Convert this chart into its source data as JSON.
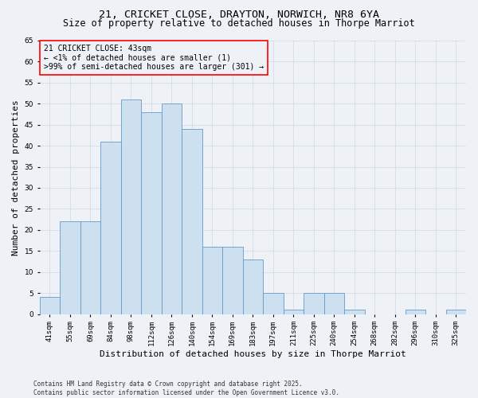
{
  "title_line1": "21, CRICKET CLOSE, DRAYTON, NORWICH, NR8 6YA",
  "title_line2": "Size of property relative to detached houses in Thorpe Marriot",
  "xlabel": "Distribution of detached houses by size in Thorpe Marriot",
  "ylabel": "Number of detached properties",
  "footnote": "Contains HM Land Registry data © Crown copyright and database right 2025.\nContains public sector information licensed under the Open Government Licence v3.0.",
  "bar_labels": [
    "41sqm",
    "55sqm",
    "69sqm",
    "84sqm",
    "98sqm",
    "112sqm",
    "126sqm",
    "140sqm",
    "154sqm",
    "169sqm",
    "183sqm",
    "197sqm",
    "211sqm",
    "225sqm",
    "240sqm",
    "254sqm",
    "268sqm",
    "282sqm",
    "296sqm",
    "310sqm",
    "325sqm"
  ],
  "bar_values": [
    4,
    22,
    22,
    41,
    51,
    48,
    50,
    44,
    16,
    16,
    13,
    5,
    1,
    5,
    5,
    1,
    0,
    0,
    1,
    0,
    1
  ],
  "bar_color": "#cce0f0",
  "bar_edge_color": "#6699cc",
  "ylim": [
    0,
    65
  ],
  "yticks": [
    0,
    5,
    10,
    15,
    20,
    25,
    30,
    35,
    40,
    45,
    50,
    55,
    60,
    65
  ],
  "annotation_box_text": "21 CRICKET CLOSE: 43sqm\n← <1% of detached houses are smaller (1)\n>99% of semi-detached houses are larger (301) →",
  "bg_color": "#eef2f7",
  "grid_color": "#d0d8e4",
  "title_fontsize": 9.5,
  "subtitle_fontsize": 8.5,
  "axis_label_fontsize": 8,
  "tick_fontsize": 6.5,
  "annotation_fontsize": 7,
  "footnote_fontsize": 5.5
}
